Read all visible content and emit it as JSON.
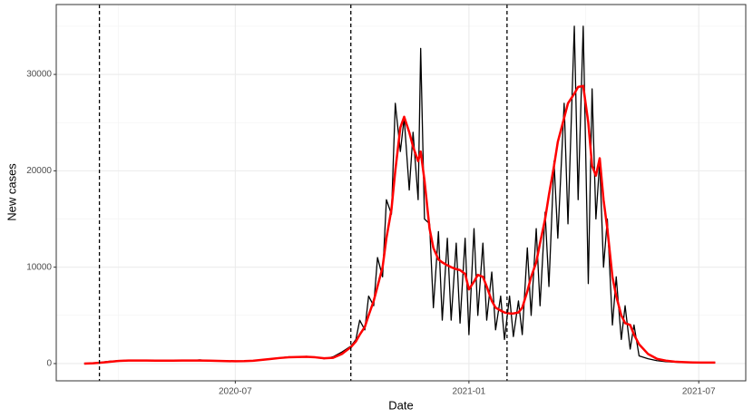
{
  "chart_data": {
    "type": "line",
    "x_label": "Date",
    "y_label": "New cases",
    "x": [
      "2020-03-04",
      "2020-03-11",
      "2020-03-18",
      "2020-03-25",
      "2020-04-01",
      "2020-04-08",
      "2020-04-15",
      "2020-04-22",
      "2020-04-29",
      "2020-05-06",
      "2020-05-13",
      "2020-05-20",
      "2020-05-27",
      "2020-06-03",
      "2020-06-10",
      "2020-06-17",
      "2020-06-24",
      "2020-07-01",
      "2020-07-08",
      "2020-07-15",
      "2020-07-22",
      "2020-07-29",
      "2020-08-05",
      "2020-08-12",
      "2020-08-19",
      "2020-08-26",
      "2020-09-02",
      "2020-09-09",
      "2020-09-16",
      "2020-09-23",
      "2020-09-30",
      "2020-10-04",
      "2020-10-07",
      "2020-10-11",
      "2020-10-14",
      "2020-10-18",
      "2020-10-21",
      "2020-10-25",
      "2020-10-28",
      "2020-11-01",
      "2020-11-04",
      "2020-11-08",
      "2020-11-11",
      "2020-11-15",
      "2020-11-18",
      "2020-11-22",
      "2020-11-24",
      "2020-11-27",
      "2020-12-01",
      "2020-12-04",
      "2020-12-08",
      "2020-12-11",
      "2020-12-15",
      "2020-12-18",
      "2020-12-22",
      "2020-12-25",
      "2020-12-29",
      "2021-01-01",
      "2021-01-05",
      "2021-01-08",
      "2021-01-12",
      "2021-01-15",
      "2021-01-19",
      "2021-01-22",
      "2021-01-26",
      "2021-01-29",
      "2021-02-02",
      "2021-02-05",
      "2021-02-09",
      "2021-02-12",
      "2021-02-16",
      "2021-02-19",
      "2021-02-23",
      "2021-02-26",
      "2021-03-02",
      "2021-03-05",
      "2021-03-09",
      "2021-03-12",
      "2021-03-17",
      "2021-03-20",
      "2021-03-25",
      "2021-03-28",
      "2021-04-01",
      "2021-04-05",
      "2021-04-08",
      "2021-04-11",
      "2021-04-14",
      "2021-04-17",
      "2021-04-20",
      "2021-04-24",
      "2021-04-27",
      "2021-05-01",
      "2021-05-04",
      "2021-05-08",
      "2021-05-11",
      "2021-05-15",
      "2021-05-22",
      "2021-05-29",
      "2021-06-05",
      "2021-06-12",
      "2021-06-19",
      "2021-06-26",
      "2021-07-03",
      "2021-07-10",
      "2021-07-14"
    ],
    "series": [
      {
        "color": "#000000",
        "width": 1.3,
        "values": [
          0,
          50,
          150,
          250,
          300,
          350,
          300,
          350,
          280,
          320,
          300,
          350,
          300,
          380,
          300,
          280,
          250,
          220,
          250,
          300,
          400,
          500,
          600,
          700,
          650,
          750,
          650,
          500,
          700,
          1200,
          1800,
          2500,
          4500,
          3500,
          7000,
          6000,
          11000,
          9000,
          17000,
          15500,
          27000,
          22000,
          25500,
          18000,
          24000,
          17000,
          32700,
          15000,
          14500,
          5800,
          13700,
          4500,
          13000,
          4500,
          12500,
          4200,
          13000,
          3000,
          14000,
          5000,
          12500,
          4500,
          9500,
          3500,
          7000,
          2500,
          7000,
          2800,
          6500,
          3000,
          12000,
          5000,
          14000,
          6000,
          15700,
          8000,
          21000,
          13000,
          27000,
          14500,
          35000,
          17000,
          35000,
          8300,
          28500,
          15000,
          21000,
          10000,
          15000,
          4000,
          9000,
          2500,
          6000,
          1500,
          4000,
          800,
          500,
          300,
          200,
          150,
          100,
          100,
          100,
          100,
          100
        ]
      },
      {
        "color": "#ff0000",
        "width": 2.5,
        "values": [
          0,
          30,
          100,
          200,
          280,
          320,
          320,
          310,
          300,
          300,
          300,
          320,
          320,
          320,
          300,
          280,
          260,
          240,
          250,
          290,
          380,
          480,
          580,
          650,
          680,
          700,
          650,
          550,
          600,
          1000,
          1700,
          2300,
          3000,
          3800,
          5000,
          6500,
          8000,
          10000,
          13000,
          16000,
          20000,
          24500,
          25600,
          24000,
          22500,
          21000,
          22000,
          19000,
          14000,
          12000,
          10800,
          10500,
          10200,
          10000,
          9800,
          9700,
          9300,
          7700,
          8500,
          9200,
          9000,
          8000,
          6500,
          5800,
          5500,
          5300,
          5200,
          5200,
          5300,
          5800,
          7500,
          9000,
          10500,
          12500,
          15000,
          17500,
          20500,
          23000,
          25500,
          27000,
          28000,
          28700,
          28800,
          25000,
          20500,
          19500,
          21300,
          17000,
          14000,
          9000,
          7000,
          5000,
          4200,
          4000,
          3000,
          2000,
          1000,
          500,
          300,
          200,
          150,
          120,
          100,
          100,
          100
        ]
      }
    ],
    "vlines": [
      "2020-03-16",
      "2020-09-30",
      "2021-01-31"
    ],
    "xlim": [
      "2020-02-11",
      "2021-08-07"
    ],
    "xticks": [
      {
        "value": "2020-07-01",
        "label": "2020-07"
      },
      {
        "value": "2021-01-01",
        "label": "2021-01"
      },
      {
        "value": "2021-07-01",
        "label": "2021-07"
      }
    ],
    "ylim": [
      -1790,
      37250
    ],
    "yticks": [
      0,
      10000,
      20000,
      30000
    ],
    "grid": true
  }
}
